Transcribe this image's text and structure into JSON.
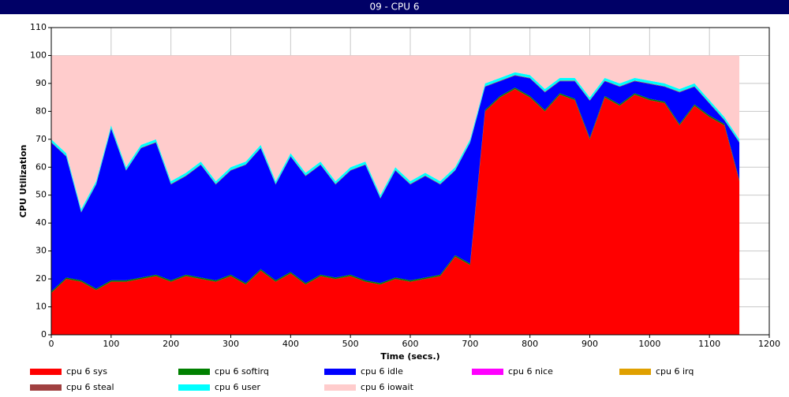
{
  "header": {
    "title": "09 - CPU 6"
  },
  "chart_data": {
    "type": "stacked_area",
    "xlabel": "Time (secs.)",
    "ylabel": "CPU Utilization",
    "xlim": [
      0,
      1200
    ],
    "xticks": [
      0,
      100,
      200,
      300,
      400,
      500,
      600,
      700,
      800,
      900,
      1000,
      1100,
      1200
    ],
    "ylim": [
      0,
      110
    ],
    "yticks": [
      0,
      10,
      20,
      30,
      40,
      50,
      60,
      70,
      80,
      90,
      100,
      110
    ],
    "grid": true,
    "legend": "bottom",
    "x": [
      0,
      25,
      50,
      75,
      100,
      125,
      150,
      175,
      200,
      225,
      250,
      275,
      300,
      325,
      350,
      375,
      400,
      425,
      450,
      475,
      500,
      525,
      550,
      575,
      600,
      625,
      650,
      675,
      700,
      725,
      750,
      775,
      800,
      825,
      850,
      875,
      900,
      925,
      950,
      975,
      1000,
      1025,
      1050,
      1075,
      1100,
      1125,
      1150
    ],
    "series": [
      {
        "name": "cpu 6 sys",
        "color": "#ff0000",
        "values": [
          15,
          20,
          19,
          16,
          19,
          19,
          20,
          21,
          19,
          21,
          20,
          19,
          21,
          18,
          23,
          19,
          22,
          18,
          21,
          20,
          21,
          19,
          18,
          20,
          19,
          20,
          21,
          28,
          25,
          80,
          85,
          88,
          85,
          80,
          86,
          84,
          70,
          85,
          82,
          86,
          84,
          83,
          75,
          82,
          78,
          75,
          55
        ]
      },
      {
        "name": "cpu 6 softirq",
        "color": "#008000",
        "values": [
          0.5,
          0.5,
          0.5,
          0.5,
          0.5,
          0.5,
          0.5,
          0.5,
          0.5,
          0.5,
          0.5,
          0.5,
          0.5,
          0.5,
          0.5,
          0.5,
          0.5,
          0.5,
          0.5,
          0.5,
          0.5,
          0.5,
          0.5,
          0.5,
          0.5,
          0.5,
          0.5,
          0.5,
          0.5,
          0.5,
          0.5,
          0.5,
          0.5,
          0.5,
          0.5,
          0.5,
          0.5,
          0.5,
          0.5,
          0.5,
          0.5,
          0.5,
          0.5,
          0.5,
          0.5,
          0.5,
          0.5
        ]
      },
      {
        "name": "cpu 6 idle",
        "color": "#0000ff",
        "values": [
          53.3,
          43.3,
          24.3,
          37.3,
          54.3,
          39.3,
          46.3,
          47.3,
          34.3,
          35.3,
          40.3,
          34.3,
          37.3,
          42.3,
          43.3,
          34.3,
          41.3,
          38.3,
          39.3,
          33.3,
          37.3,
          41.3,
          30.3,
          38.3,
          34.3,
          36.3,
          32.3,
          30.3,
          43.3,
          8.3,
          5.3,
          4.3,
          6.3,
          6.3,
          4.3,
          6.3,
          13.3,
          5.3,
          6.3,
          4.3,
          5.3,
          5.3,
          11.3,
          6.3,
          4.3,
          1.3,
          13.3
        ]
      },
      {
        "name": "cpu 6 nice",
        "color": "#ff00ff",
        "values": [
          0,
          0,
          0,
          0,
          0,
          0,
          0,
          0,
          0,
          0,
          0,
          0,
          0,
          0,
          0,
          0,
          0,
          0,
          0,
          0,
          0,
          0,
          0,
          0,
          0,
          0,
          0,
          0,
          0,
          0,
          0,
          0,
          0,
          0,
          0,
          0,
          0,
          0,
          0,
          0,
          0,
          0,
          0,
          0,
          0,
          0,
          0
        ]
      },
      {
        "name": "cpu 6 irq",
        "color": "#e0a000",
        "values": [
          0,
          0,
          0,
          0,
          0,
          0,
          0,
          0,
          0,
          0,
          0,
          0,
          0,
          0,
          0,
          0,
          0,
          0,
          0,
          0,
          0,
          0,
          0,
          0,
          0,
          0,
          0,
          0,
          0,
          0,
          0,
          0,
          0,
          0,
          0,
          0,
          0,
          0,
          0,
          0,
          0,
          0,
          0,
          0,
          0,
          0,
          0
        ]
      },
      {
        "name": "cpu 6 steal",
        "color": "#a04040",
        "values": [
          0.2,
          0.2,
          0.2,
          0.2,
          0.2,
          0.2,
          0.2,
          0.2,
          0.2,
          0.2,
          0.2,
          0.2,
          0.2,
          0.2,
          0.2,
          0.2,
          0.2,
          0.2,
          0.2,
          0.2,
          0.2,
          0.2,
          0.2,
          0.2,
          0.2,
          0.2,
          0.2,
          0.2,
          0.2,
          0.2,
          0.2,
          0.2,
          0.2,
          0.2,
          0.2,
          0.2,
          0.2,
          0.2,
          0.2,
          0.2,
          0.2,
          0.2,
          0.2,
          0.2,
          0.2,
          0.2,
          0.2
        ]
      },
      {
        "name": "cpu 6 user",
        "color": "#00ffff",
        "values": [
          1,
          1,
          1,
          1,
          1,
          1,
          1,
          1,
          1,
          1,
          1,
          1,
          1,
          1,
          1,
          1,
          1,
          1,
          1,
          1,
          1,
          1,
          1,
          1,
          1,
          1,
          1,
          1,
          1,
          1,
          1,
          1,
          1,
          1,
          1,
          1,
          1,
          1,
          1,
          1,
          1,
          1,
          1,
          1,
          1,
          1,
          1
        ]
      },
      {
        "name": "cpu 6 iowait",
        "color": "#ffcccc",
        "values": [
          30,
          35,
          55,
          45,
          25,
          40,
          32,
          30,
          45,
          42,
          38,
          45,
          40,
          38,
          32,
          45,
          35,
          42,
          38,
          45,
          40,
          38,
          50,
          40,
          45,
          42,
          45,
          40,
          30,
          10,
          8,
          6,
          7,
          12,
          8,
          8,
          15,
          8,
          10,
          8,
          9,
          10,
          12,
          10,
          16,
          22,
          30
        ]
      }
    ]
  }
}
